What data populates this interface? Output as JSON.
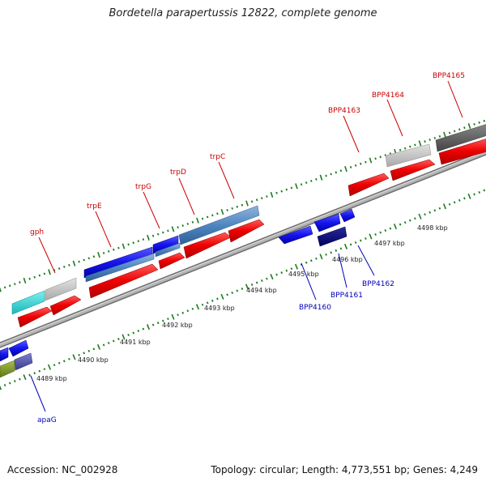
{
  "title": "Bordetella parapertussis 12822, complete genome",
  "footer": {
    "accession": "Accession: NC_002928",
    "topology": "Topology: circular; Length: 4,773,551 bp; Genes: 4,249"
  },
  "colors": {
    "forward_label": "#cc0000",
    "reverse_label": "#0000bb",
    "tick": "#1f7a1f",
    "backbone": "#9a9a9a"
  },
  "scale_labels": [
    "4489 kbp",
    "4490 kbp",
    "4491 kbp",
    "4492 kbp",
    "4493 kbp",
    "4494 kbp",
    "4495 kbp",
    "4496 kbp",
    "4497 kbp",
    "4498 kbp"
  ],
  "forward_genes": [
    "gph",
    "trpE",
    "trpG",
    "trpD",
    "trpC",
    "BPP4163",
    "BPP4164",
    "BPP4165"
  ],
  "reverse_genes": [
    "apaG",
    "BPP4160",
    "BPP4161",
    "BPP4162"
  ]
}
